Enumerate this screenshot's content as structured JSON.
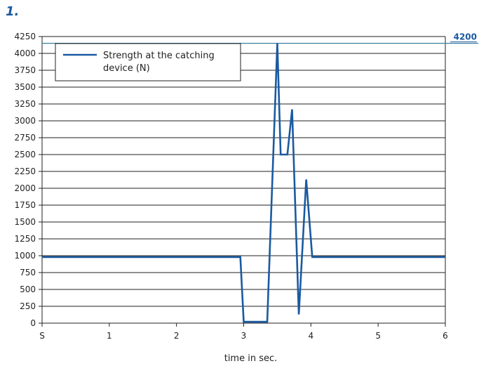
{
  "figure_label": "1.",
  "chart_data": {
    "type": "line",
    "xlabel": "time in sec.",
    "ylabel": "",
    "xlim": [
      0,
      6
    ],
    "ylim": [
      0,
      4250
    ],
    "x_tick_labels": [
      "S",
      "1",
      "2",
      "3",
      "4",
      "5",
      "6"
    ],
    "x_ticks": [
      0,
      1,
      2,
      3,
      4,
      5,
      6
    ],
    "y_ticks": [
      0,
      250,
      500,
      750,
      1000,
      1250,
      1500,
      1750,
      2000,
      2250,
      2500,
      2750,
      3000,
      3250,
      3500,
      3750,
      4000,
      4250
    ],
    "grid": "horizontal",
    "legend_position": "top-left",
    "reference_line": {
      "value": 4150,
      "label": "4200",
      "color": "#3a7fa0"
    },
    "series": [
      {
        "name": "Strength at the catching device (N)",
        "color": "#1a5aa0",
        "x": [
          0,
          2.95,
          3.0,
          3.35,
          3.5,
          3.55,
          3.65,
          3.72,
          3.82,
          3.93,
          4.02,
          6.0
        ],
        "y": [
          980,
          980,
          20,
          20,
          4150,
          2500,
          2500,
          3170,
          130,
          2130,
          980,
          980
        ]
      }
    ]
  }
}
